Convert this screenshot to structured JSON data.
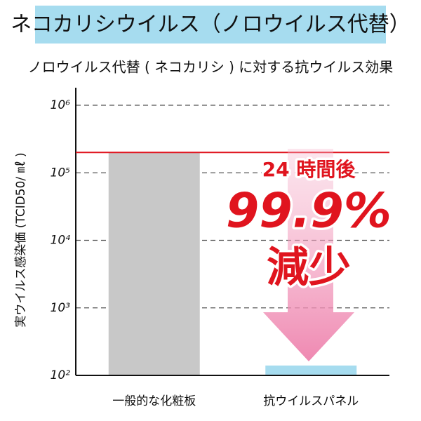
{
  "chart_data": {
    "type": "bar",
    "title": "ネコカリシウイルス（ノロウイルス代替）",
    "subtitle": "ノロウイルス代替 ( ネコカリシ ) に対する抗ウイルス効果",
    "y_label": "実ウイルス感染価 (TCID50/ ㎖ )",
    "categories": [
      "一般的な化粧板",
      "抗ウイルスパネル"
    ],
    "values": [
      200000,
      140
    ],
    "colors": [
      "#c8c8c8",
      "#a6dcef"
    ],
    "log_scale": true,
    "ylim": [
      100,
      1000000
    ],
    "yticks": [
      {
        "value": 100,
        "label": "10²"
      },
      {
        "value": 1000,
        "label": "10³"
      },
      {
        "value": 10000,
        "label": "10⁴"
      },
      {
        "value": 100000,
        "label": "10⁵"
      },
      {
        "value": 1000000,
        "label": "10⁶"
      }
    ],
    "grid": true,
    "reference_line": {
      "value": 200000,
      "color": "#e0141e"
    },
    "annotations": [
      "24 時間後",
      "99.9%",
      "減少"
    ]
  }
}
